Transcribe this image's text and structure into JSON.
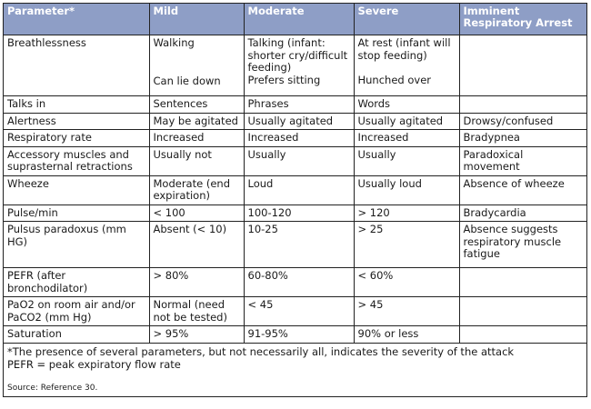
{
  "headers": [
    "Parameter*",
    "Mild",
    "Moderate",
    "Severe",
    "Imminent Respiratory Arrest"
  ],
  "rows": {
    "breathlessness": {
      "param": "Breathlessness",
      "mild_top": "Walking",
      "mild_bottom": "Can lie down",
      "moderate_top": "Talking (infant: shorter cry/difficult feeding)",
      "moderate_bottom": "Prefers sitting",
      "severe_top": "At rest (infant will stop feeding)",
      "severe_bottom": "Hunched over",
      "imminent": ""
    },
    "talks": {
      "param": "Talks in",
      "mild": "Sentences",
      "moderate": "Phrases",
      "severe": "Words",
      "imminent": ""
    },
    "alertness": {
      "param": "Alertness",
      "mild": "May be agitated",
      "moderate": "Usually agitated",
      "severe": "Usually agitated",
      "imminent": "Drowsy/confused"
    },
    "resp_rate": {
      "param": "Respiratory rate",
      "mild": "Increased",
      "moderate": "Increased",
      "severe": "Increased",
      "imminent": "Bradypnea"
    },
    "accessory": {
      "param": "Accessory muscles and suprasternal retractions",
      "mild": "Usually not",
      "moderate": "Usually",
      "severe": "Usually",
      "imminent": "Paradoxical movement"
    },
    "wheeze": {
      "param": "Wheeze",
      "mild": "Moderate (end expiration)",
      "moderate": "Loud",
      "severe": "Usually loud",
      "imminent": "Absence of wheeze"
    },
    "pulse": {
      "param": "Pulse/min",
      "mild": "< 100",
      "moderate": "100-120",
      "severe": "> 120",
      "imminent": "Bradycardia"
    },
    "pulsus": {
      "param": "Pulsus paradoxus (mm HG)",
      "mild": "Absent (< 10)",
      "moderate": "10-25",
      "severe": "> 25",
      "imminent": "Absence suggests respiratory muscle fatigue"
    },
    "pefr": {
      "param": "PEFR (after bronchodilator)",
      "mild": "> 80%",
      "moderate": "60-80%",
      "severe": "< 60%",
      "imminent": ""
    },
    "pao2": {
      "param": "PaO2 on room air and/or PaCO2 (mm Hg)",
      "mild": "Normal (need not be tested)",
      "moderate": "< 45",
      "severe": "> 45",
      "imminent": ""
    },
    "saturation": {
      "param": "Saturation",
      "mild": "> 95%",
      "moderate": "91-95%",
      "severe": "90% or less",
      "imminent": ""
    }
  },
  "footnote": {
    "line1": "*The presence of several parameters, but not necessarily all, indicates the severity of the attack",
    "line2": "PEFR = peak expiratory flow rate",
    "source": "Source: Reference 30."
  },
  "colors": {
    "header_bg": "#8e9ec6",
    "header_text": "#ffffff",
    "border": "#222222"
  }
}
